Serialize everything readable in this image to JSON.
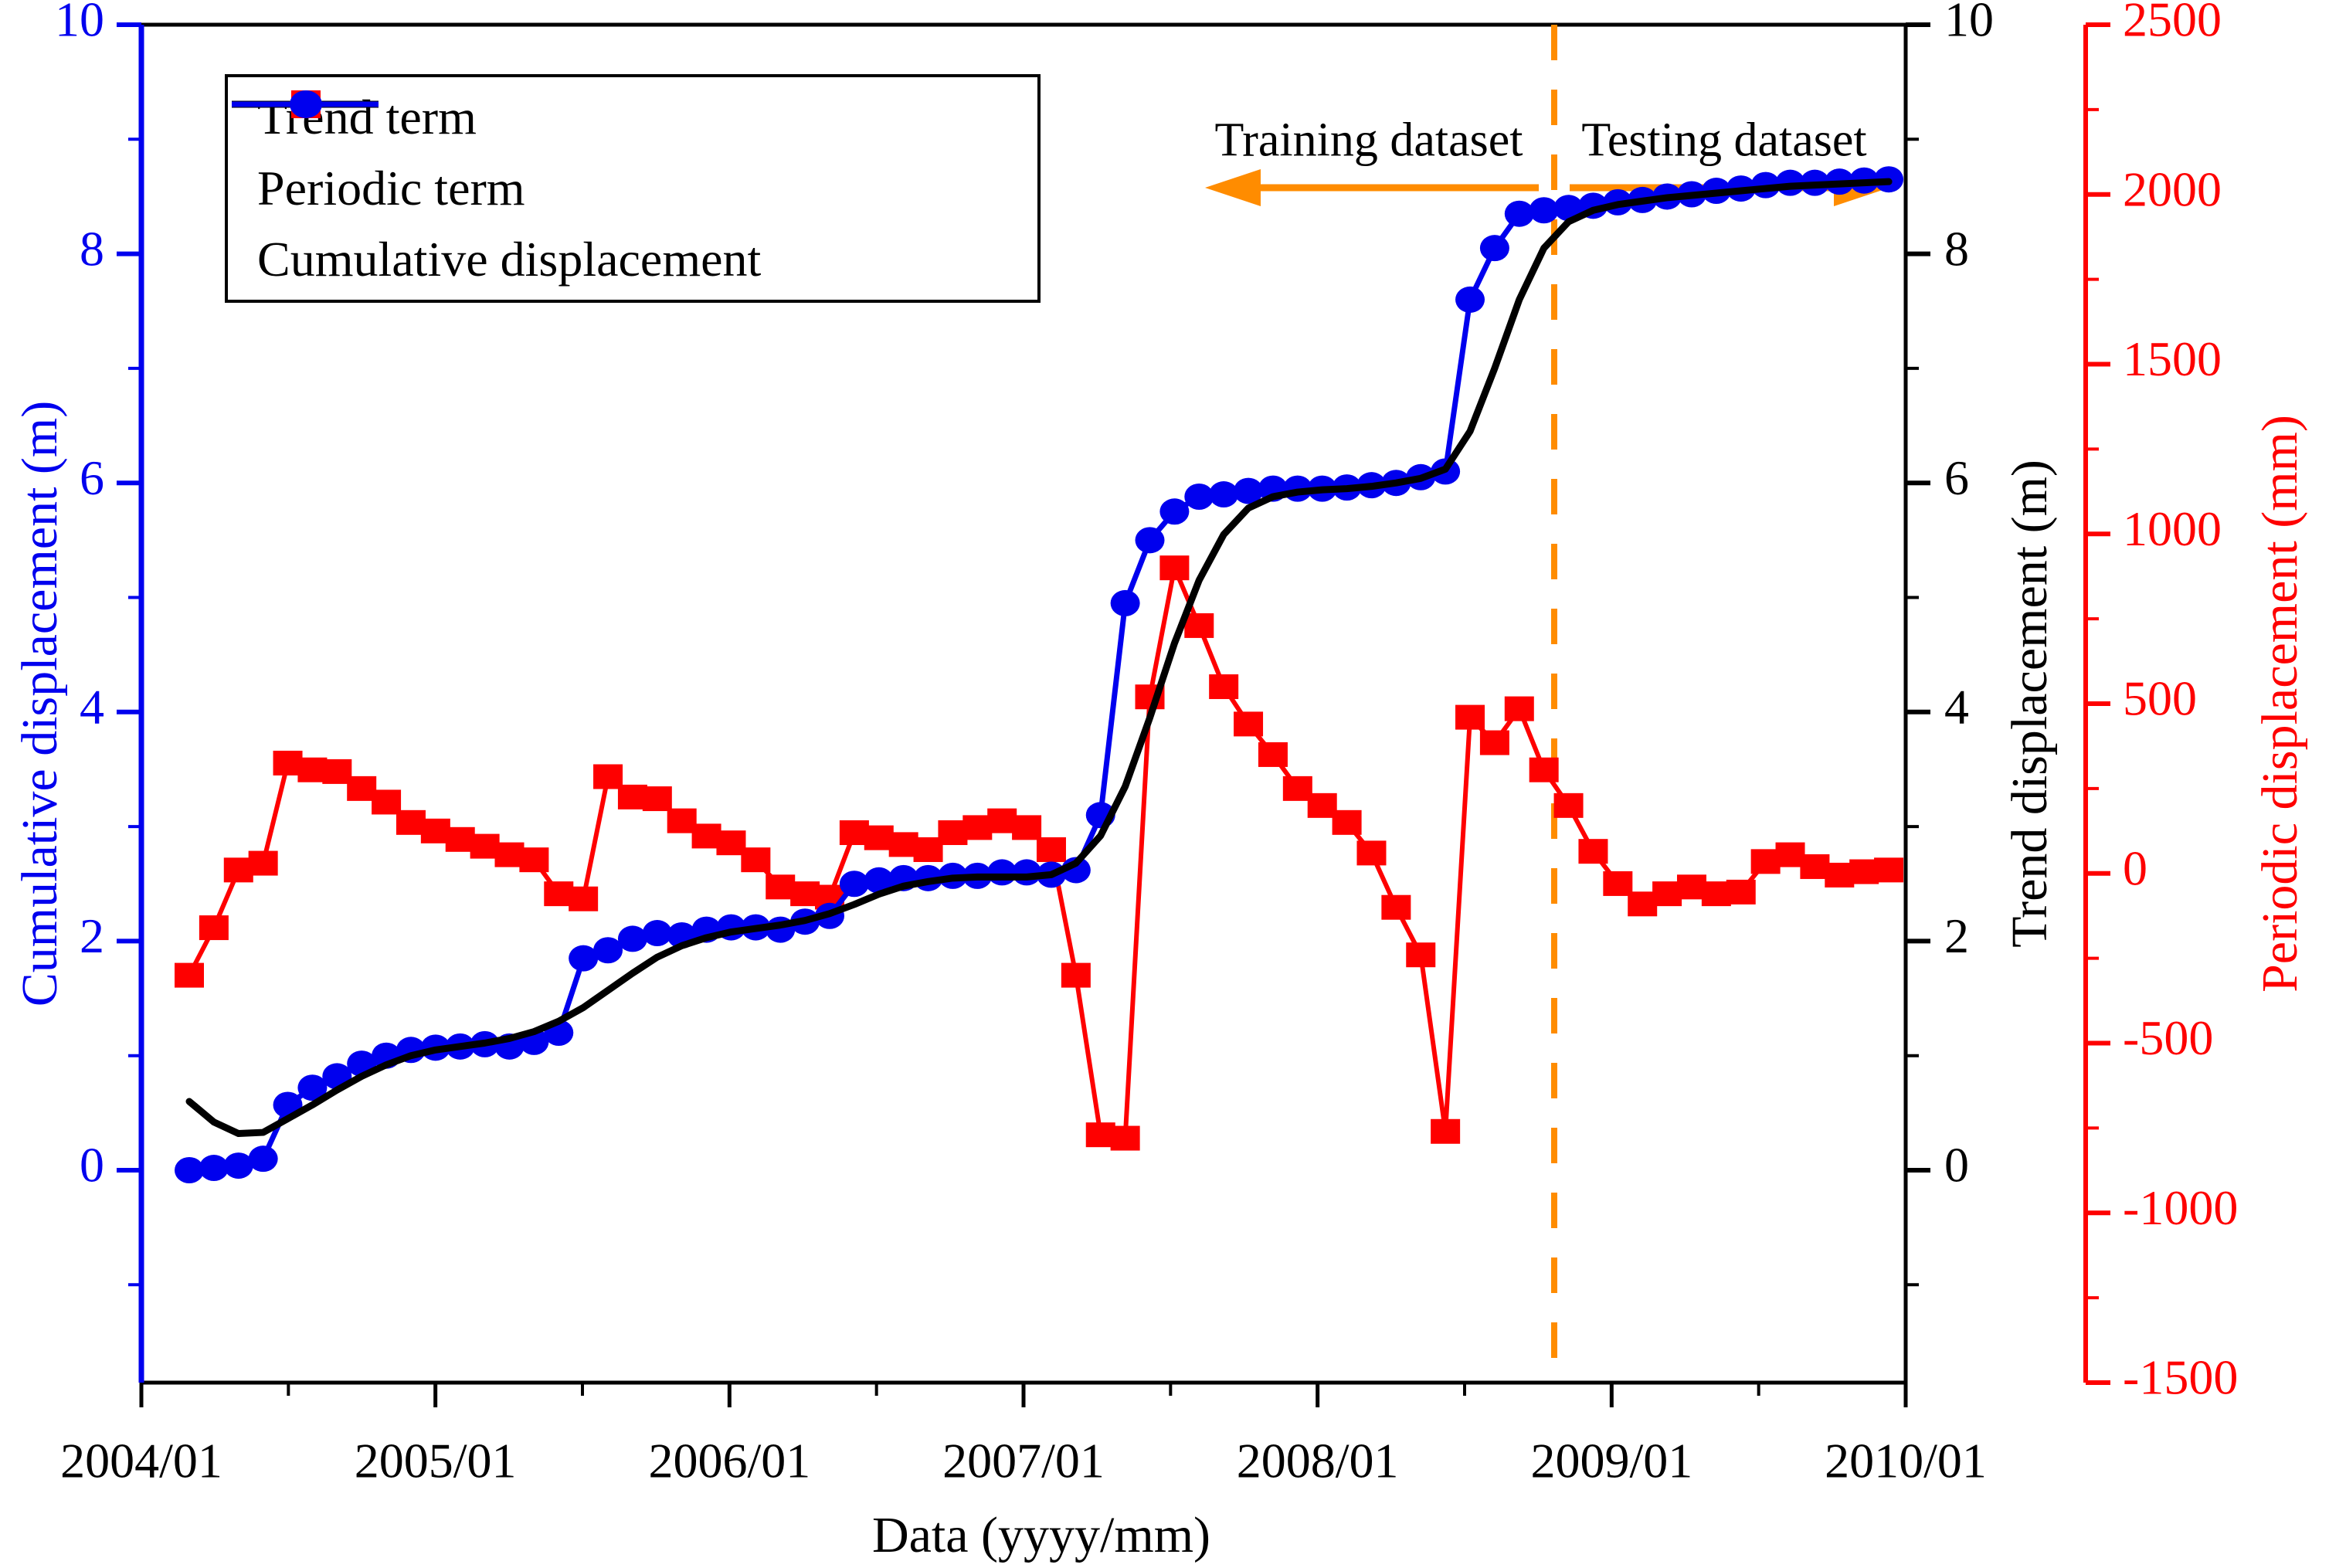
{
  "chart_data": {
    "type": "line",
    "title": "",
    "xlabel": "Data (yyyy/mm)",
    "grid": "off",
    "legend_position": "top-left",
    "axes": {
      "x": {
        "tick_labels": [
          "2004/01",
          "2005/01",
          "2006/01",
          "2007/01",
          "2008/01",
          "2009/01",
          "2010/01"
        ]
      },
      "cumulative": {
        "label": "Cumulative displacement (m)",
        "color": "#0000ee",
        "ticks": [
          0,
          2,
          4,
          6,
          8,
          10
        ],
        "minor_ticks": [
          -1,
          1,
          3,
          5,
          7,
          9
        ],
        "side": "left"
      },
      "trend": {
        "label": "Trend displacement (m)",
        "color": "#000000",
        "ticks": [
          0,
          2,
          4,
          6,
          8,
          10
        ],
        "minor_ticks": [
          -1,
          1,
          3,
          5,
          7,
          9
        ],
        "side": "right-inner"
      },
      "periodic": {
        "label": "Periodic displacement (mm)",
        "color": "#fe0000",
        "ticks": [
          -1500,
          -1000,
          -500,
          0,
          500,
          1000,
          1500,
          2000,
          2500
        ],
        "range": [
          -1500,
          2500
        ],
        "side": "right-outer"
      }
    },
    "x": [
      "2004/03",
      "2004/04",
      "2004/05",
      "2004/06",
      "2004/07",
      "2004/08",
      "2004/09",
      "2004/10",
      "2004/11",
      "2004/12",
      "2005/01",
      "2005/02",
      "2005/03",
      "2005/04",
      "2005/05",
      "2005/06",
      "2005/07",
      "2005/08",
      "2005/09",
      "2005/10",
      "2005/11",
      "2005/12",
      "2006/01",
      "2006/02",
      "2006/03",
      "2006/04",
      "2006/05",
      "2006/06",
      "2006/07",
      "2006/08",
      "2006/09",
      "2006/10",
      "2006/11",
      "2006/12",
      "2007/01",
      "2007/02",
      "2007/03",
      "2007/04",
      "2007/05",
      "2007/06",
      "2007/07",
      "2007/08",
      "2007/09",
      "2007/10",
      "2007/11",
      "2007/12",
      "2008/01",
      "2008/02",
      "2008/03",
      "2008/04",
      "2008/05",
      "2008/06",
      "2008/07",
      "2008/08",
      "2008/09",
      "2008/10",
      "2008/11",
      "2008/12",
      "2009/01",
      "2009/02",
      "2009/03",
      "2009/04",
      "2009/05",
      "2009/06",
      "2009/07",
      "2009/08",
      "2009/09",
      "2009/10",
      "2009/11",
      "2009/12"
    ],
    "series": [
      {
        "name": "Trend term",
        "axis": "trend",
        "unit": "m",
        "color": "#000000",
        "marker": "none",
        "values": [
          0.6,
          0.42,
          0.32,
          0.33,
          0.45,
          0.57,
          0.7,
          0.82,
          0.92,
          1.0,
          1.05,
          1.08,
          1.11,
          1.15,
          1.21,
          1.3,
          1.42,
          1.57,
          1.72,
          1.86,
          1.96,
          2.03,
          2.08,
          2.11,
          2.14,
          2.18,
          2.24,
          2.32,
          2.41,
          2.48,
          2.52,
          2.55,
          2.56,
          2.56,
          2.56,
          2.58,
          2.68,
          2.92,
          3.35,
          3.95,
          4.6,
          5.15,
          5.55,
          5.78,
          5.88,
          5.92,
          5.94,
          5.95,
          5.97,
          6.0,
          6.04,
          6.12,
          6.45,
          7.0,
          7.6,
          8.05,
          8.28,
          8.38,
          8.43,
          8.46,
          8.49,
          8.51,
          8.53,
          8.55,
          8.57,
          8.59,
          8.6,
          8.61,
          8.62,
          8.63
        ]
      },
      {
        "name": "Periodic term",
        "axis": "periodic",
        "unit": "mm",
        "color": "#fe0000",
        "marker": "square",
        "values": [
          -300,
          -160,
          10,
          30,
          325,
          305,
          300,
          250,
          210,
          150,
          125,
          100,
          80,
          55,
          40,
          -60,
          -75,
          285,
          225,
          220,
          155,
          110,
          90,
          40,
          -40,
          -60,
          -70,
          120,
          105,
          85,
          70,
          120,
          135,
          155,
          135,
          70,
          -300,
          -770,
          -780,
          520,
          900,
          730,
          550,
          440,
          350,
          250,
          200,
          150,
          60,
          -100,
          -240,
          -760,
          460,
          385,
          485,
          305,
          200,
          65,
          -30,
          -90,
          -60,
          -40,
          -60,
          -55,
          35,
          55,
          20,
          -5,
          5,
          10
        ]
      },
      {
        "name": "Cumulative displacement",
        "axis": "cumulative",
        "unit": "m",
        "color": "#0000ee",
        "marker": "circle",
        "values": [
          0.0,
          0.02,
          0.04,
          0.1,
          0.57,
          0.72,
          0.82,
          0.93,
          1.0,
          1.05,
          1.07,
          1.08,
          1.1,
          1.08,
          1.12,
          1.2,
          1.85,
          1.92,
          2.02,
          2.07,
          2.05,
          2.1,
          2.12,
          2.12,
          2.1,
          2.17,
          2.22,
          2.5,
          2.53,
          2.55,
          2.55,
          2.57,
          2.57,
          2.6,
          2.6,
          2.58,
          2.62,
          3.1,
          4.95,
          5.5,
          5.75,
          5.88,
          5.9,
          5.93,
          5.95,
          5.95,
          5.95,
          5.96,
          5.98,
          6.0,
          6.05,
          6.1,
          7.6,
          8.05,
          8.35,
          8.38,
          8.4,
          8.42,
          8.45,
          8.47,
          8.5,
          8.52,
          8.55,
          8.57,
          8.6,
          8.62,
          8.62,
          8.63,
          8.64,
          8.65
        ]
      }
    ],
    "annotations": {
      "training": "Training dataset",
      "testing": "Testing dataset",
      "split_after": "2008/10",
      "accent_color": "#ff8c00"
    }
  },
  "legend": {
    "items": [
      {
        "label": "Trend term",
        "color": "#000000",
        "marker": "none"
      },
      {
        "label": "Periodic term",
        "color": "#fe0000",
        "marker": "square"
      },
      {
        "label": "Cumulative displacement",
        "color": "#0000ee",
        "marker": "circle"
      }
    ]
  }
}
